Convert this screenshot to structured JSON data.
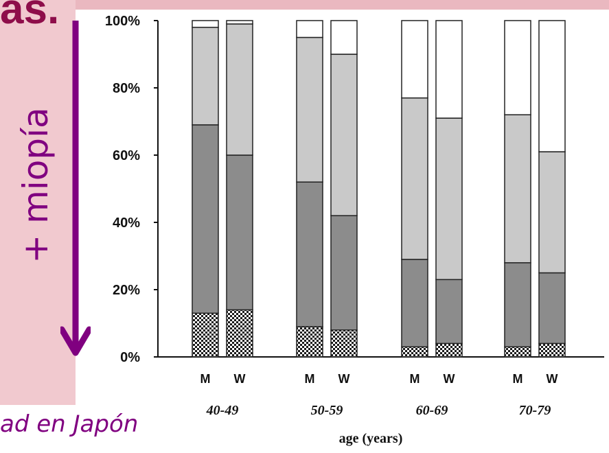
{
  "slide": {
    "title_fragment": "as.",
    "side_label": "+ miopía",
    "caption": "ad en Japón"
  },
  "colors": {
    "left_panel": "#f1c9cf",
    "title": "#8e0d4a",
    "accent_purple": "#800080"
  },
  "chart_data": {
    "type": "bar",
    "stacked": true,
    "ylim": [
      0,
      100
    ],
    "y_ticks": [
      "0%",
      "20%",
      "40%",
      "60%",
      "80%",
      "100%"
    ],
    "xlabel": "age (years)",
    "groups": [
      "40-49",
      "50-59",
      "60-69",
      "70-79"
    ],
    "sexes": [
      "M",
      "W"
    ],
    "categories": [
      "40-49 M",
      "40-49 W",
      "50-59 M",
      "50-59 W",
      "60-69 M",
      "60-69 W",
      "70-79 M",
      "70-79 W"
    ],
    "series": [
      {
        "values": [
          13,
          14,
          9,
          8,
          3,
          4,
          3,
          4
        ],
        "color": "#1a1a1a",
        "pattern": "crosshatch"
      },
      {
        "values": [
          56,
          46,
          43,
          34,
          26,
          19,
          25,
          21
        ],
        "color": "#8c8c8c"
      },
      {
        "values": [
          29,
          39,
          43,
          48,
          48,
          48,
          44,
          36
        ],
        "color": "#c9c9c9"
      },
      {
        "values": [
          2,
          1,
          5,
          10,
          23,
          29,
          28,
          39
        ],
        "color": "#ffffff"
      }
    ],
    "grid": false,
    "legend": "none"
  }
}
